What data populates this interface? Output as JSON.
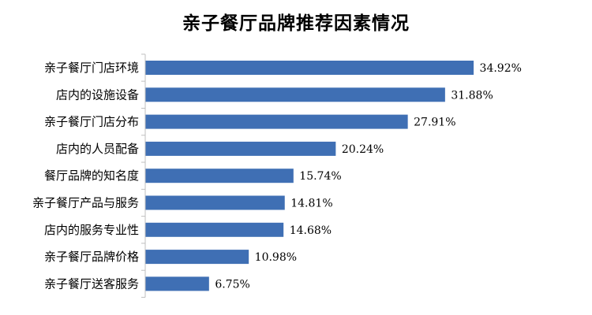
{
  "chart_data": {
    "type": "bar",
    "orientation": "horizontal",
    "title": "亲子餐厅品牌推荐因素情况",
    "categories": [
      "亲子餐厅门店环境",
      "店内的设施设备",
      "亲子餐厅门店分布",
      "店内的人员配备",
      "餐厅品牌的知名度",
      "亲子餐厅产品与服务",
      "店内的服务专业性",
      "亲子餐厅品牌价格",
      "亲子餐厅送客服务"
    ],
    "values": [
      34.92,
      31.88,
      27.91,
      20.24,
      15.74,
      14.81,
      14.68,
      10.98,
      6.75
    ],
    "value_labels": [
      "34.92%",
      "31.88%",
      "27.91%",
      "20.24%",
      "15.74%",
      "14.81%",
      "14.68%",
      "10.98%",
      "6.75%"
    ],
    "xlim": [
      0,
      40
    ],
    "grid": false,
    "legend": "none",
    "bar_color": "#3f6fb4",
    "xlabel": "",
    "ylabel": ""
  }
}
